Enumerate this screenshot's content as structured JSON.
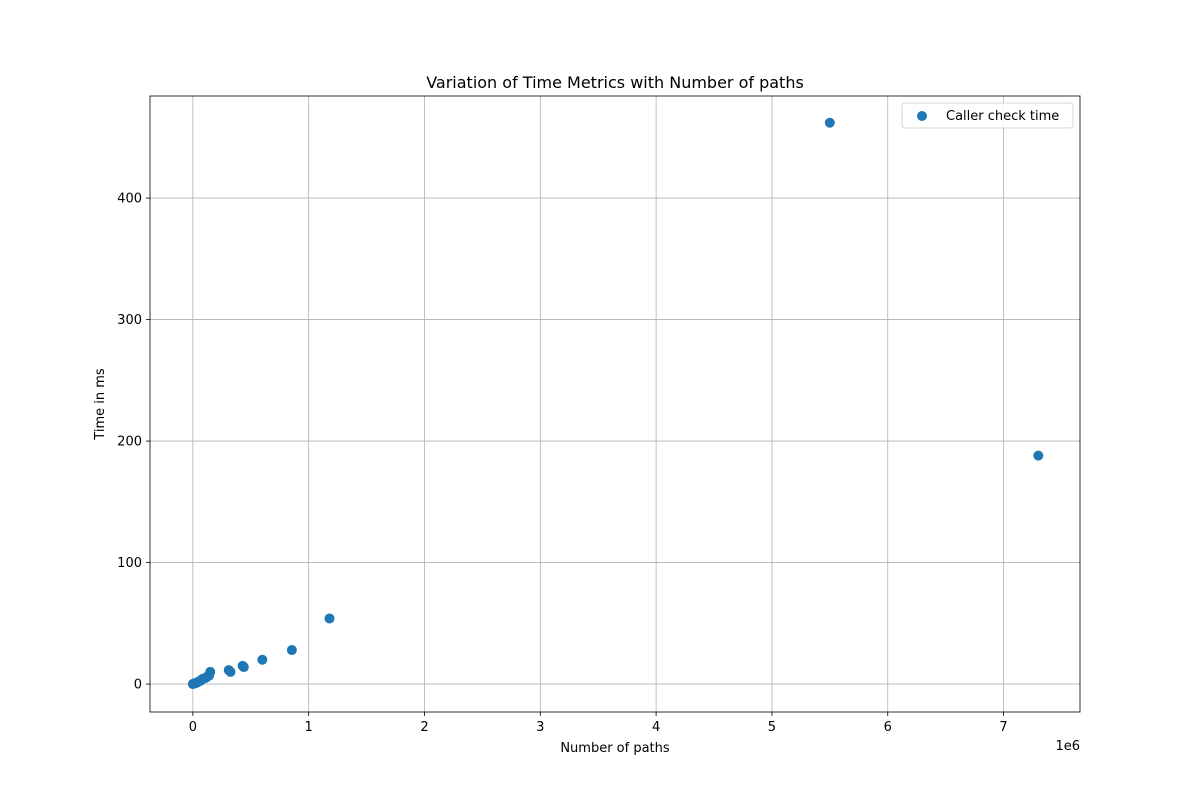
{
  "chart_data": {
    "type": "scatter",
    "title": "Variation of Time Metrics with Number of paths",
    "xlabel": "Number of paths",
    "ylabel": "Time in ms",
    "x_offset_text": "1e6",
    "xlim": [
      -370000,
      7660000
    ],
    "ylim": [
      -23,
      484
    ],
    "x_ticks": [
      0,
      1000000,
      2000000,
      3000000,
      4000000,
      5000000,
      6000000,
      7000000
    ],
    "x_tick_labels": [
      "0",
      "1",
      "2",
      "3",
      "4",
      "5",
      "6",
      "7"
    ],
    "y_ticks": [
      0,
      100,
      200,
      300,
      400
    ],
    "y_tick_labels": [
      "0",
      "100",
      "200",
      "300",
      "400"
    ],
    "grid": true,
    "legend_position": "top-right",
    "series": [
      {
        "name": "Caller check time",
        "color": "#1f77b4",
        "points": [
          {
            "x": 0,
            "y": 0
          },
          {
            "x": 5000,
            "y": 0.3
          },
          {
            "x": 10000,
            "y": 0.5
          },
          {
            "x": 15000,
            "y": 0.6
          },
          {
            "x": 20000,
            "y": 0.8
          },
          {
            "x": 30000,
            "y": 1
          },
          {
            "x": 40000,
            "y": 1.5
          },
          {
            "x": 50000,
            "y": 2
          },
          {
            "x": 60000,
            "y": 2.5
          },
          {
            "x": 70000,
            "y": 3
          },
          {
            "x": 80000,
            "y": 4
          },
          {
            "x": 90000,
            "y": 4.5
          },
          {
            "x": 110000,
            "y": 5
          },
          {
            "x": 130000,
            "y": 6.5
          },
          {
            "x": 140000,
            "y": 7
          },
          {
            "x": 150000,
            "y": 10
          },
          {
            "x": 310000,
            "y": 11.5
          },
          {
            "x": 325000,
            "y": 10
          },
          {
            "x": 430000,
            "y": 15
          },
          {
            "x": 440000,
            "y": 14
          },
          {
            "x": 600000,
            "y": 20
          },
          {
            "x": 855000,
            "y": 28
          },
          {
            "x": 1180000,
            "y": 54
          },
          {
            "x": 5500000,
            "y": 462
          },
          {
            "x": 7300000,
            "y": 188
          }
        ]
      }
    ]
  }
}
